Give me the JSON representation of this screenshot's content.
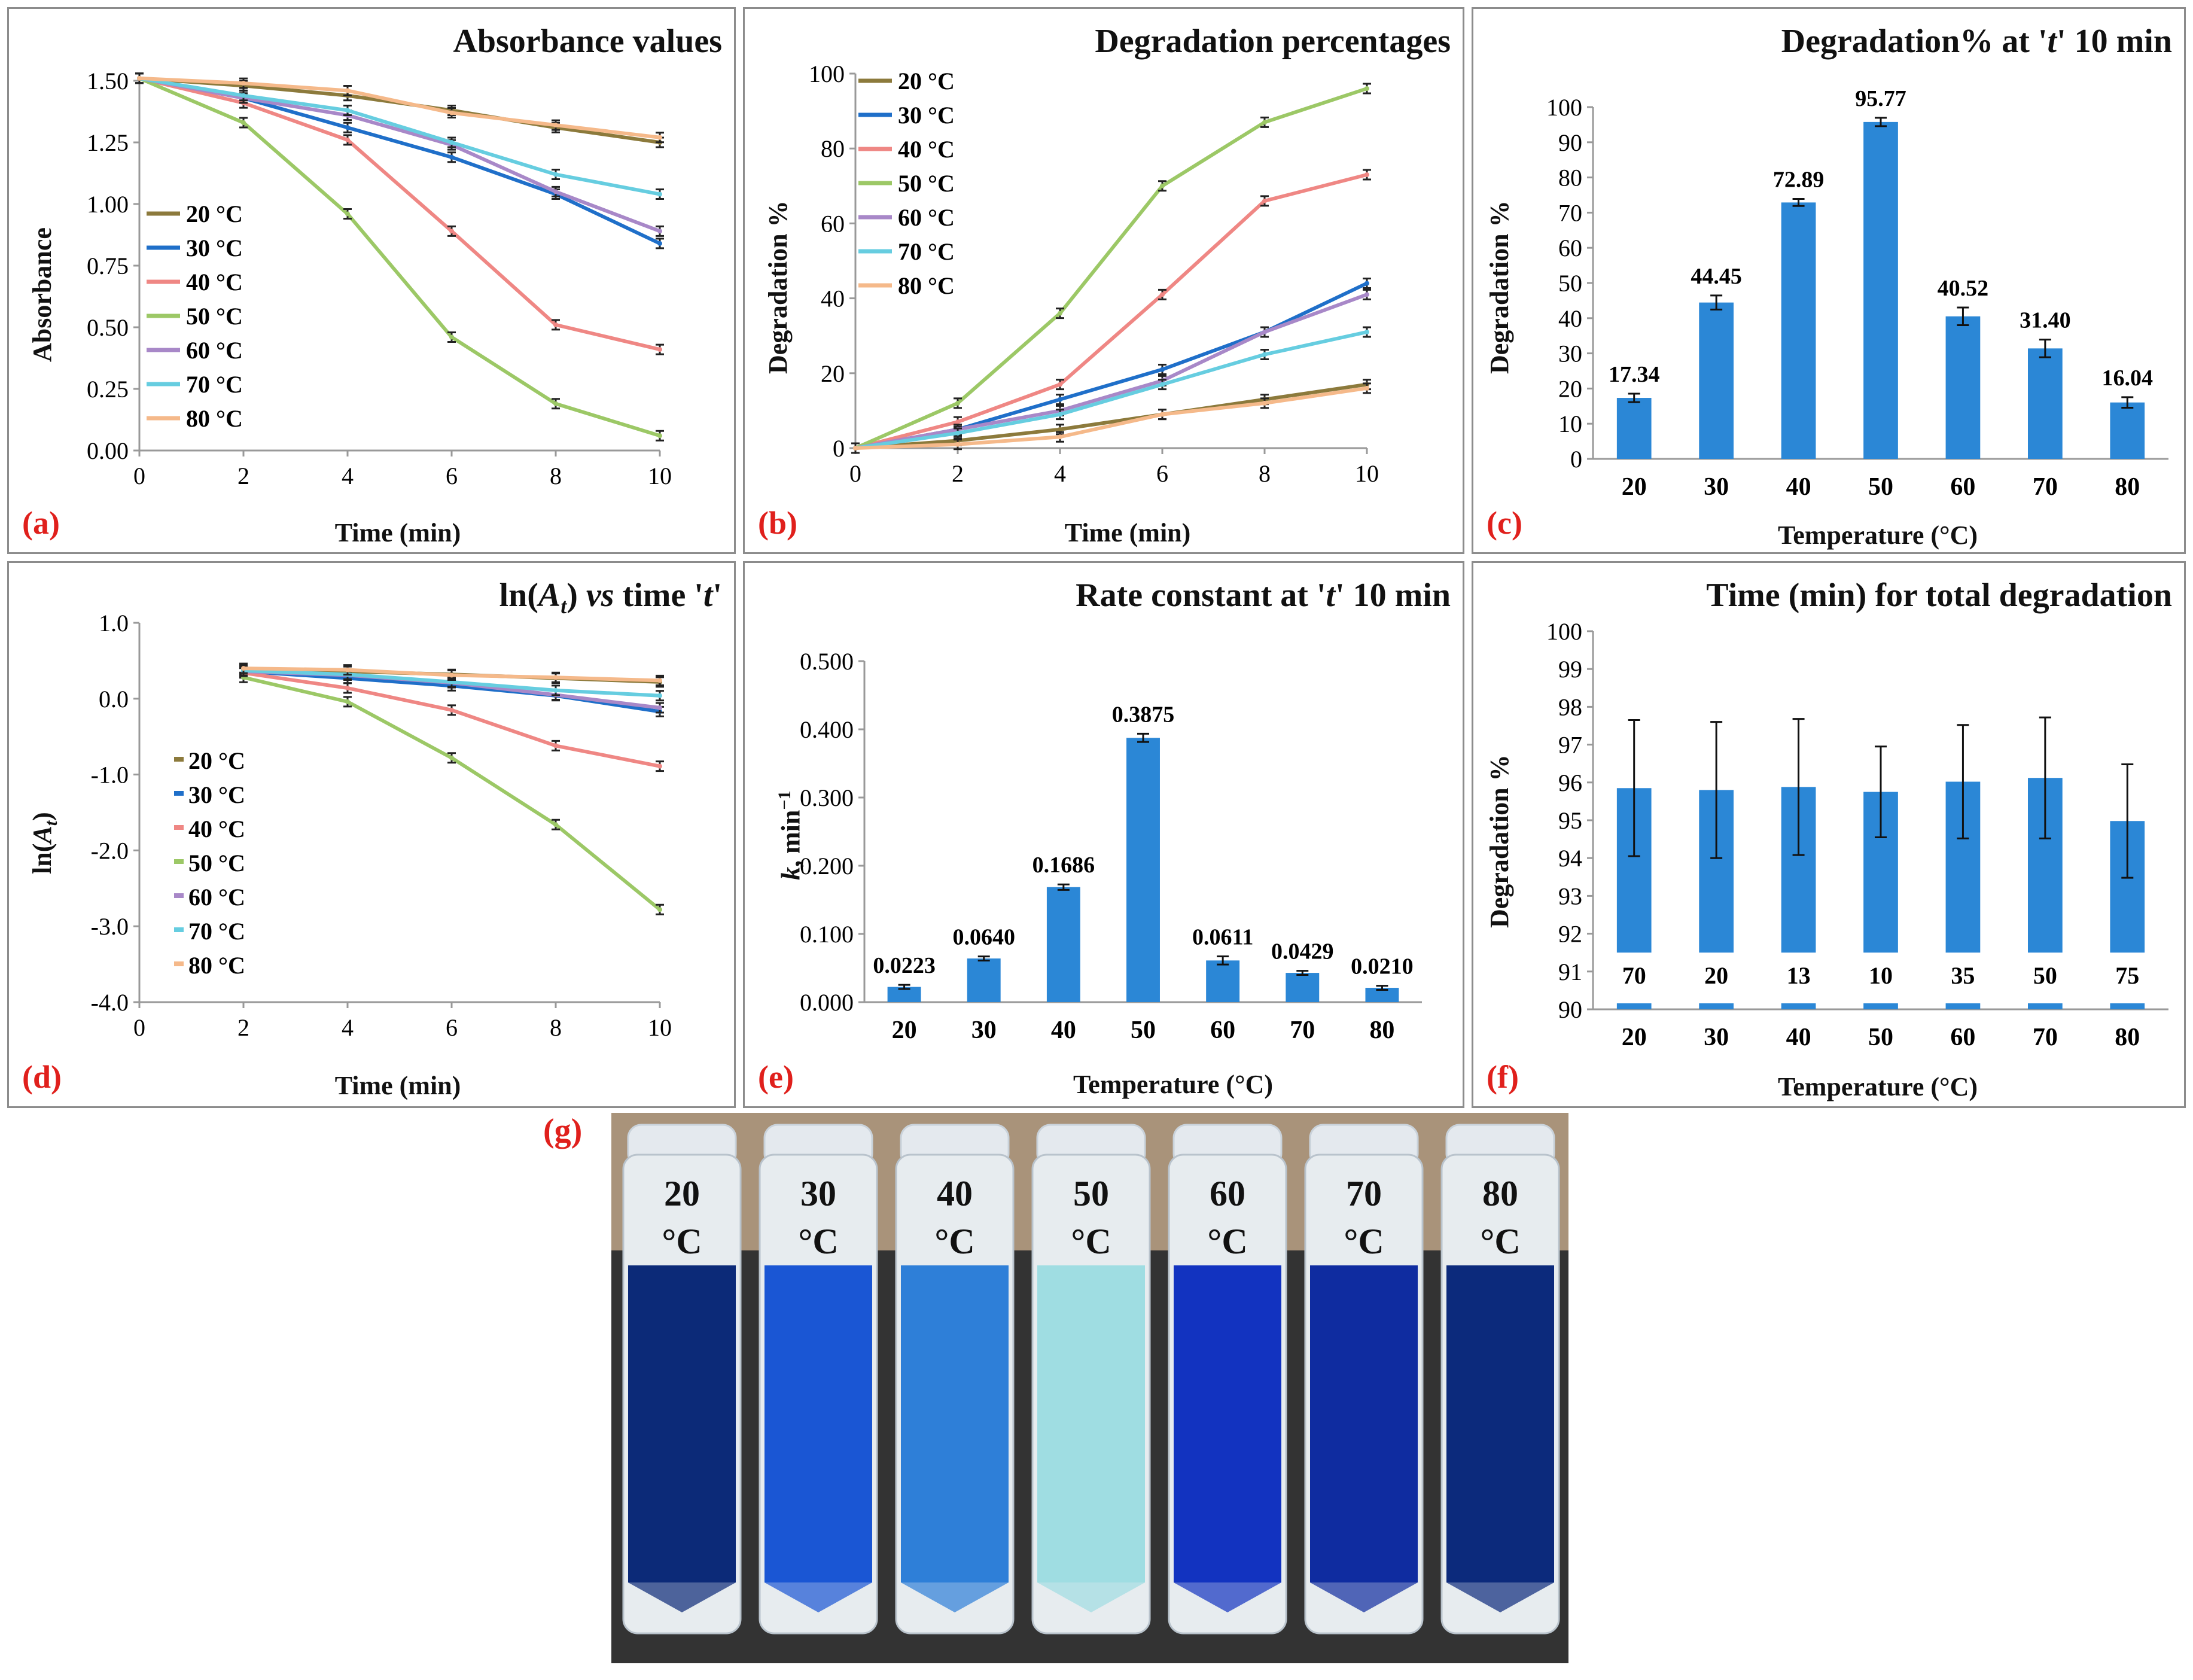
{
  "colors": {
    "t20": "#8c7a3c",
    "t30": "#1f6fc9",
    "t40": "#ef8784",
    "t50": "#9cc866",
    "t60": "#a888c8",
    "t70": "#66cde0",
    "t80": "#f5b98a",
    "bar": "#2b87d6",
    "panel_label": "#e0201c"
  },
  "chart_data": [
    {
      "id": "a",
      "type": "line",
      "panel_label": "(a)",
      "title": "Absorbance values",
      "xlabel": "Time (min)",
      "ylabel": "Absorbance",
      "x": [
        0,
        2,
        4,
        6,
        8,
        10
      ],
      "xlim": [
        0,
        10
      ],
      "ylim": [
        0,
        1.5
      ],
      "xticks": [
        "0",
        "2",
        "4",
        "6",
        "8",
        "10"
      ],
      "yticks": [
        "0.00",
        "0.25",
        "0.50",
        "0.75",
        "1.00",
        "1.25",
        "1.50"
      ],
      "legend": "left",
      "series": [
        {
          "name": "20 °C",
          "values": [
            1.51,
            1.48,
            1.44,
            1.38,
            1.31,
            1.25
          ]
        },
        {
          "name": "30 °C",
          "values": [
            1.51,
            1.43,
            1.31,
            1.19,
            1.04,
            0.84
          ]
        },
        {
          "name": "40 °C",
          "values": [
            1.51,
            1.41,
            1.26,
            0.89,
            0.51,
            0.41
          ]
        },
        {
          "name": "50 °C",
          "values": [
            1.51,
            1.33,
            0.96,
            0.46,
            0.19,
            0.06
          ]
        },
        {
          "name": "60 °C",
          "values": [
            1.51,
            1.43,
            1.36,
            1.24,
            1.05,
            0.89
          ]
        },
        {
          "name": "70 °C",
          "values": [
            1.51,
            1.44,
            1.38,
            1.25,
            1.12,
            1.04
          ]
        },
        {
          "name": "80 °C",
          "values": [
            1.51,
            1.49,
            1.46,
            1.37,
            1.32,
            1.27
          ]
        }
      ]
    },
    {
      "id": "b",
      "type": "line",
      "panel_label": "(b)",
      "title": "Degradation percentages",
      "xlabel": "Time (min)",
      "ylabel": "Degradation %",
      "x": [
        0,
        2,
        4,
        6,
        8,
        10
      ],
      "xlim": [
        0,
        10
      ],
      "ylim": [
        0,
        100
      ],
      "xticks": [
        "0",
        "2",
        "4",
        "6",
        "8",
        "10"
      ],
      "yticks": [
        "0",
        "20",
        "40",
        "60",
        "80",
        "100"
      ],
      "legend": "top-left",
      "series": [
        {
          "name": "20 °C",
          "values": [
            0,
            2,
            5,
            9,
            13,
            17
          ]
        },
        {
          "name": "30 °C",
          "values": [
            0,
            5,
            13,
            21,
            31,
            44
          ]
        },
        {
          "name": "40 °C",
          "values": [
            0,
            7,
            17,
            41,
            66,
            73
          ]
        },
        {
          "name": "50 °C",
          "values": [
            0,
            12,
            36,
            70,
            87,
            96
          ]
        },
        {
          "name": "60 °C",
          "values": [
            0,
            5,
            10,
            18,
            31,
            41
          ]
        },
        {
          "name": "70 °C",
          "values": [
            0,
            4,
            9,
            17,
            25,
            31
          ]
        },
        {
          "name": "80 °C",
          "values": [
            0,
            1,
            3,
            9,
            12,
            16
          ]
        }
      ]
    },
    {
      "id": "c",
      "type": "bar",
      "panel_label": "(c)",
      "title": "Degradation% at 't' 10 min",
      "xlabel": "Temperature (°C)",
      "ylabel": "Degradation %",
      "categories": [
        "20",
        "30",
        "40",
        "50",
        "60",
        "70",
        "80"
      ],
      "values": [
        17.34,
        44.45,
        72.89,
        95.77,
        40.52,
        31.4,
        16.04
      ],
      "value_labels": [
        "17.34",
        "44.45",
        "72.89",
        "95.77",
        "40.52",
        "31.40",
        "16.04"
      ],
      "errors": [
        1.2,
        2.0,
        1.0,
        1.2,
        2.5,
        2.5,
        1.5
      ],
      "ylim": [
        0,
        100
      ],
      "yticks": [
        "0",
        "10",
        "20",
        "30",
        "40",
        "50",
        "60",
        "70",
        "80",
        "90",
        "100"
      ]
    },
    {
      "id": "d",
      "type": "line",
      "panel_label": "(d)",
      "title": "ln(A_t) vs time 't'",
      "xlabel": "Time (min)",
      "ylabel": "ln(A_t)",
      "x": [
        2,
        4,
        6,
        8,
        10
      ],
      "xlim": [
        0,
        10
      ],
      "ylim": [
        -4,
        1
      ],
      "xticks": [
        "0",
        "2",
        "4",
        "6",
        "8",
        "10"
      ],
      "yticks": [
        "-4.0",
        "-3.0",
        "-2.0",
        "-1.0",
        "0.0",
        "1.0"
      ],
      "legend": "left",
      "series": [
        {
          "name": "20 °C",
          "values": [
            0.39,
            0.36,
            0.32,
            0.27,
            0.22
          ]
        },
        {
          "name": "30 °C",
          "values": [
            0.36,
            0.27,
            0.17,
            0.04,
            -0.17
          ]
        },
        {
          "name": "40 °C",
          "values": [
            0.34,
            0.14,
            -0.15,
            -0.62,
            -0.89
          ]
        },
        {
          "name": "50 °C",
          "values": [
            0.28,
            -0.04,
            -0.78,
            -1.66,
            -2.78
          ]
        },
        {
          "name": "60 °C",
          "values": [
            0.36,
            0.31,
            0.21,
            0.05,
            -0.12
          ]
        },
        {
          "name": "70 °C",
          "values": [
            0.37,
            0.32,
            0.22,
            0.11,
            0.04
          ]
        },
        {
          "name": "80 °C",
          "values": [
            0.4,
            0.38,
            0.31,
            0.28,
            0.24
          ]
        }
      ]
    },
    {
      "id": "e",
      "type": "bar",
      "panel_label": "(e)",
      "title": "Rate constant at 't' 10 min",
      "xlabel": "Temperature (°C)",
      "ylabel": "k, min⁻¹",
      "categories": [
        "20",
        "30",
        "40",
        "50",
        "60",
        "70",
        "80"
      ],
      "values": [
        0.0223,
        0.064,
        0.1686,
        0.3875,
        0.0611,
        0.0429,
        0.021
      ],
      "value_labels": [
        "0.0223",
        "0.0640",
        "0.1686",
        "0.3875",
        "0.0611",
        "0.0429",
        "0.0210"
      ],
      "errors": [
        0.003,
        0.003,
        0.004,
        0.006,
        0.006,
        0.003,
        0.003
      ],
      "ylim": [
        0,
        0.5
      ],
      "yticks": [
        "0.000",
        "0.100",
        "0.200",
        "0.300",
        "0.400",
        "0.500"
      ]
    },
    {
      "id": "f",
      "type": "bar",
      "panel_label": "(f)",
      "title": "Time (min) for total degradation",
      "xlabel": "Temperature (°C)",
      "ylabel": "Degradation %",
      "categories": [
        "20",
        "30",
        "40",
        "50",
        "60",
        "70",
        "80"
      ],
      "values": [
        95.85,
        95.8,
        95.88,
        95.75,
        96.02,
        96.12,
        94.98
      ],
      "errors": [
        1.8,
        1.8,
        1.8,
        1.2,
        1.5,
        1.6,
        1.5
      ],
      "time_labels": [
        "70",
        "20",
        "13",
        "10",
        "35",
        "50",
        "75"
      ],
      "ylim": [
        90,
        100
      ],
      "yticks": [
        "90",
        "91",
        "92",
        "93",
        "94",
        "95",
        "96",
        "97",
        "98",
        "99",
        "100"
      ]
    }
  ],
  "photo": {
    "panel_label": "(g)",
    "vials": [
      {
        "label": "20",
        "unit": "°C",
        "liquid": "#0c2a78"
      },
      {
        "label": "30",
        "unit": "°C",
        "liquid": "#1a56d4"
      },
      {
        "label": "40",
        "unit": "°C",
        "liquid": "#2e7fd8"
      },
      {
        "label": "50",
        "unit": "°C",
        "liquid": "#9fdde2"
      },
      {
        "label": "60",
        "unit": "°C",
        "liquid": "#1233c0"
      },
      {
        "label": "70",
        "unit": "°C",
        "liquid": "#0f2ca0"
      },
      {
        "label": "80",
        "unit": "°C",
        "liquid": "#0c2a7c"
      }
    ]
  }
}
